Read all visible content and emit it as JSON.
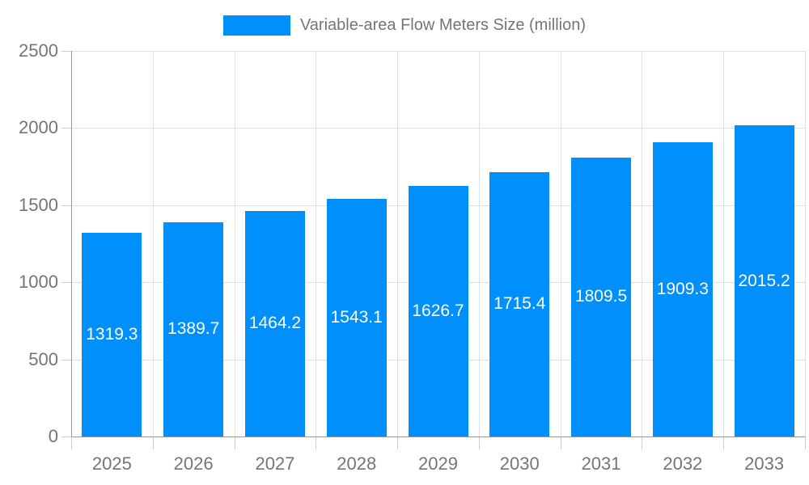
{
  "legend": {
    "label": "Variable-area Flow Meters Size (million)"
  },
  "colors": {
    "bar": "#008FFB",
    "grid": "#e0e0e0",
    "tick": "#cccccc",
    "axis": "#999999",
    "text": "#757575",
    "value_label": "#ffffff"
  },
  "chart_data": {
    "type": "bar",
    "title": "Variable-area Flow Meters Size (million)",
    "categories": [
      "2025",
      "2026",
      "2027",
      "2028",
      "2029",
      "2030",
      "2031",
      "2032",
      "2033"
    ],
    "values": [
      1319.3,
      1389.7,
      1464.2,
      1543.1,
      1626.7,
      1715.4,
      1809.5,
      1909.3,
      2015.2
    ],
    "value_label_decimals": 1,
    "value_label_position": "inside-center",
    "xlabel": "",
    "ylabel": "",
    "ylim": [
      0,
      2500
    ],
    "ytick_step": 500,
    "ytick_labels": [
      "0",
      "500",
      "1000",
      "1500",
      "2000",
      "2500"
    ],
    "grid": true,
    "legend_position": "top"
  }
}
